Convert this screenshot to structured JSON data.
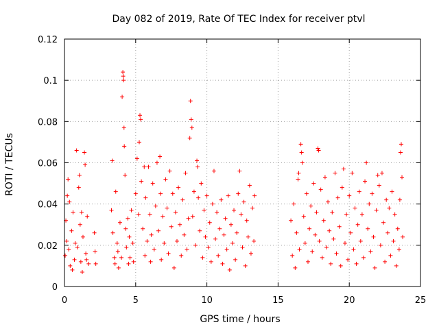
{
  "chart_data": {
    "type": "scatter",
    "title": "Day 082 of 2019, Rate Of TEC Index for receiver ptvl",
    "xlabel": "GPS time / hours",
    "ylabel": "ROTI / TECUs",
    "xlim": [
      0,
      25
    ],
    "ylim": [
      0,
      0.12
    ],
    "xticks": [
      0,
      5,
      10,
      15,
      20,
      25
    ],
    "xtick_labels": [
      "0",
      "5",
      "10",
      "15",
      "20",
      "25"
    ],
    "yticks": [
      0,
      0.02,
      0.04,
      0.06,
      0.08,
      0.1,
      0.12
    ],
    "ytick_labels": [
      "0",
      "0.02",
      "0.04",
      "0.06",
      "0.08",
      "0.1",
      "0.12"
    ],
    "grid": true,
    "marker": "+",
    "color": "#ff0000",
    "series": [
      {
        "name": "ROTI",
        "points": [
          [
            0.05,
            0.015
          ],
          [
            0.1,
            0.032
          ],
          [
            0.15,
            0.022
          ],
          [
            0.2,
            0.044
          ],
          [
            0.25,
            0.052
          ],
          [
            0.3,
            0.018
          ],
          [
            0.35,
            0.041
          ],
          [
            0.4,
            0.01
          ],
          [
            0.5,
            0.027
          ],
          [
            0.55,
            0.008
          ],
          [
            0.6,
            0.036
          ],
          [
            0.7,
            0.013
          ],
          [
            0.75,
            0.021
          ],
          [
            0.85,
            0.066
          ],
          [
            0.9,
            0.019
          ],
          [
            1.0,
            0.048
          ],
          [
            1.05,
            0.054
          ],
          [
            1.1,
            0.03
          ],
          [
            1.15,
            0.012
          ],
          [
            1.2,
            0.036
          ],
          [
            1.25,
            0.007
          ],
          [
            1.3,
            0.024
          ],
          [
            1.4,
            0.065
          ],
          [
            1.45,
            0.059
          ],
          [
            1.5,
            0.016
          ],
          [
            1.55,
            0.013
          ],
          [
            1.6,
            0.034
          ],
          [
            1.7,
            0.011
          ],
          [
            2.1,
            0.026
          ],
          [
            2.15,
            0.017
          ],
          [
            2.2,
            0.011
          ],
          [
            3.3,
            0.037
          ],
          [
            3.35,
            0.061
          ],
          [
            3.4,
            0.026
          ],
          [
            3.5,
            0.014
          ],
          [
            3.55,
            0.011
          ],
          [
            3.6,
            0.046
          ],
          [
            3.7,
            0.021
          ],
          [
            3.75,
            0.017
          ],
          [
            3.8,
            0.009
          ],
          [
            3.9,
            0.031
          ],
          [
            4.0,
            0.014
          ],
          [
            4.05,
            0.092
          ],
          [
            4.1,
            0.104
          ],
          [
            4.12,
            0.102
          ],
          [
            4.15,
            0.1
          ],
          [
            4.18,
            0.077
          ],
          [
            4.2,
            0.068
          ],
          [
            4.25,
            0.054
          ],
          [
            4.3,
            0.028
          ],
          [
            4.35,
            0.019
          ],
          [
            4.45,
            0.033
          ],
          [
            4.5,
            0.011
          ],
          [
            4.55,
            0.024
          ],
          [
            4.6,
            0.014
          ],
          [
            4.7,
            0.037
          ],
          [
            4.8,
            0.021
          ],
          [
            4.85,
            0.012
          ],
          [
            5.0,
            0.045
          ],
          [
            5.1,
            0.062
          ],
          [
            5.2,
            0.035
          ],
          [
            5.25,
            0.07
          ],
          [
            5.3,
            0.083
          ],
          [
            5.35,
            0.081
          ],
          [
            5.4,
            0.051
          ],
          [
            5.5,
            0.028
          ],
          [
            5.6,
            0.058
          ],
          [
            5.65,
            0.015
          ],
          [
            5.7,
            0.043
          ],
          [
            5.8,
            0.022
          ],
          [
            5.9,
            0.058
          ],
          [
            6.0,
            0.035
          ],
          [
            6.05,
            0.012
          ],
          [
            6.1,
            0.025
          ],
          [
            6.2,
            0.05
          ],
          [
            6.3,
            0.018
          ],
          [
            6.4,
            0.039
          ],
          [
            6.5,
            0.06
          ],
          [
            6.6,
            0.027
          ],
          [
            6.7,
            0.063
          ],
          [
            6.75,
            0.045
          ],
          [
            6.8,
            0.013
          ],
          [
            6.9,
            0.034
          ],
          [
            7.0,
            0.021
          ],
          [
            7.1,
            0.052
          ],
          [
            7.2,
            0.038
          ],
          [
            7.3,
            0.016
          ],
          [
            7.4,
            0.056
          ],
          [
            7.5,
            0.029
          ],
          [
            7.6,
            0.045
          ],
          [
            7.7,
            0.009
          ],
          [
            7.8,
            0.036
          ],
          [
            7.9,
            0.022
          ],
          [
            8.0,
            0.048
          ],
          [
            8.1,
            0.03
          ],
          [
            8.2,
            0.015
          ],
          [
            8.3,
            0.042
          ],
          [
            8.4,
            0.025
          ],
          [
            8.5,
            0.055
          ],
          [
            8.6,
            0.018
          ],
          [
            8.7,
            0.033
          ],
          [
            8.8,
            0.072
          ],
          [
            8.85,
            0.09
          ],
          [
            8.9,
            0.081
          ],
          [
            8.95,
            0.077
          ],
          [
            9.0,
            0.034
          ],
          [
            9.1,
            0.046
          ],
          [
            9.2,
            0.02
          ],
          [
            9.3,
            0.061
          ],
          [
            9.35,
            0.058
          ],
          [
            9.4,
            0.043
          ],
          [
            9.5,
            0.027
          ],
          [
            9.6,
            0.05
          ],
          [
            9.7,
            0.014
          ],
          [
            9.8,
            0.037
          ],
          [
            9.9,
            0.024
          ],
          [
            10.0,
            0.044
          ],
          [
            10.1,
            0.019
          ],
          [
            10.2,
            0.031
          ],
          [
            10.3,
            0.012
          ],
          [
            10.4,
            0.04
          ],
          [
            10.5,
            0.056
          ],
          [
            10.6,
            0.023
          ],
          [
            10.7,
            0.036
          ],
          [
            10.8,
            0.015
          ],
          [
            10.9,
            0.028
          ],
          [
            11.0,
            0.042
          ],
          [
            11.1,
            0.011
          ],
          [
            11.2,
            0.025
          ],
          [
            11.3,
            0.033
          ],
          [
            11.4,
            0.018
          ],
          [
            11.5,
            0.044
          ],
          [
            11.6,
            0.008
          ],
          [
            11.7,
            0.03
          ],
          [
            11.8,
            0.021
          ],
          [
            11.9,
            0.037
          ],
          [
            12.0,
            0.013
          ],
          [
            12.1,
            0.026
          ],
          [
            12.2,
            0.045
          ],
          [
            12.3,
            0.056
          ],
          [
            12.4,
            0.035
          ],
          [
            12.5,
            0.019
          ],
          [
            12.6,
            0.041
          ],
          [
            12.7,
            0.01
          ],
          [
            12.8,
            0.032
          ],
          [
            12.9,
            0.024
          ],
          [
            13.0,
            0.049
          ],
          [
            13.1,
            0.016
          ],
          [
            13.2,
            0.038
          ],
          [
            13.3,
            0.022
          ],
          [
            13.35,
            0.044
          ],
          [
            15.9,
            0.032
          ],
          [
            16.0,
            0.015
          ],
          [
            16.1,
            0.04
          ],
          [
            16.2,
            0.009
          ],
          [
            16.3,
            0.026
          ],
          [
            16.4,
            0.052
          ],
          [
            16.45,
            0.055
          ],
          [
            16.5,
            0.018
          ],
          [
            16.6,
            0.069
          ],
          [
            16.65,
            0.065
          ],
          [
            16.7,
            0.06
          ],
          [
            16.8,
            0.034
          ],
          [
            16.9,
            0.021
          ],
          [
            17.0,
            0.045
          ],
          [
            17.1,
            0.012
          ],
          [
            17.2,
            0.028
          ],
          [
            17.3,
            0.039
          ],
          [
            17.4,
            0.017
          ],
          [
            17.5,
            0.05
          ],
          [
            17.6,
            0.025
          ],
          [
            17.7,
            0.036
          ],
          [
            17.8,
            0.067
          ],
          [
            17.85,
            0.066
          ],
          [
            17.9,
            0.022
          ],
          [
            18.0,
            0.047
          ],
          [
            18.1,
            0.014
          ],
          [
            18.2,
            0.032
          ],
          [
            18.3,
            0.053
          ],
          [
            18.4,
            0.019
          ],
          [
            18.5,
            0.041
          ],
          [
            18.6,
            0.027
          ],
          [
            18.7,
            0.011
          ],
          [
            18.8,
            0.036
          ],
          [
            18.9,
            0.023
          ],
          [
            19.0,
            0.055
          ],
          [
            19.1,
            0.016
          ],
          [
            19.2,
            0.043
          ],
          [
            19.3,
            0.029
          ],
          [
            19.4,
            0.01
          ],
          [
            19.5,
            0.048
          ],
          [
            19.6,
            0.057
          ],
          [
            19.7,
            0.021
          ],
          [
            19.8,
            0.035
          ],
          [
            19.9,
            0.013
          ],
          [
            20.0,
            0.044
          ],
          [
            20.1,
            0.026
          ],
          [
            20.2,
            0.055
          ],
          [
            20.3,
            0.018
          ],
          [
            20.4,
            0.038
          ],
          [
            20.5,
            0.011
          ],
          [
            20.6,
            0.03
          ],
          [
            20.7,
            0.046
          ],
          [
            20.8,
            0.022
          ],
          [
            20.9,
            0.035
          ],
          [
            21.0,
            0.014
          ],
          [
            21.1,
            0.051
          ],
          [
            21.2,
            0.06
          ],
          [
            21.3,
            0.028
          ],
          [
            21.4,
            0.04
          ],
          [
            21.5,
            0.017
          ],
          [
            21.6,
            0.045
          ],
          [
            21.7,
            0.024
          ],
          [
            21.8,
            0.009
          ],
          [
            21.9,
            0.037
          ],
          [
            22.0,
            0.054
          ],
          [
            22.1,
            0.049
          ],
          [
            22.2,
            0.02
          ],
          [
            22.3,
            0.055
          ],
          [
            22.4,
            0.031
          ],
          [
            22.5,
            0.012
          ],
          [
            22.6,
            0.042
          ],
          [
            22.7,
            0.026
          ],
          [
            22.8,
            0.038
          ],
          [
            22.9,
            0.015
          ],
          [
            23.0,
            0.046
          ],
          [
            23.1,
            0.022
          ],
          [
            23.2,
            0.035
          ],
          [
            23.3,
            0.01
          ],
          [
            23.4,
            0.028
          ],
          [
            23.5,
            0.018
          ],
          [
            23.55,
            0.042
          ],
          [
            23.6,
            0.065
          ],
          [
            23.65,
            0.069
          ],
          [
            23.7,
            0.053
          ],
          [
            23.75,
            0.024
          ]
        ]
      }
    ]
  }
}
